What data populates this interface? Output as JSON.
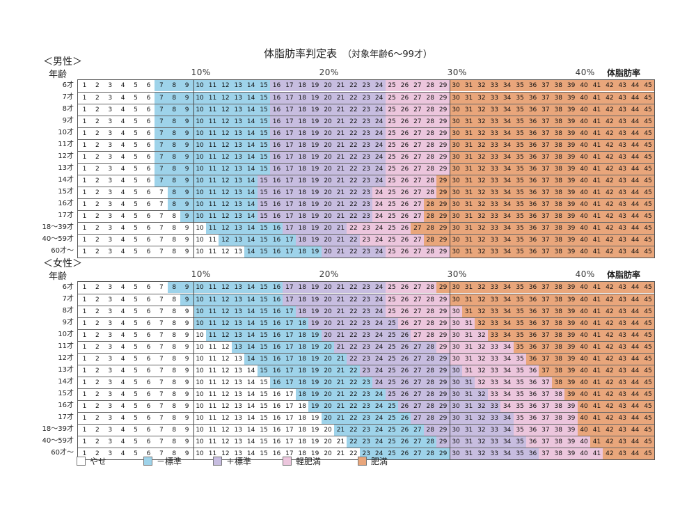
{
  "page": {
    "title": "体脂肪率判定表",
    "subtitle": "（対象年齢6〜99才）"
  },
  "header_labels": {
    "age": "年齢",
    "body_fat": "体脂肪率",
    "pct_marks": [
      "10%",
      "20%",
      "30%",
      "40%"
    ]
  },
  "legend": [
    {
      "key": "yase",
      "label": "やせ",
      "color": "#ffffff"
    },
    {
      "key": "minus",
      "label": "－標準",
      "color": "#9ed3ea"
    },
    {
      "key": "plus",
      "label": "＋標準",
      "color": "#c7bde0"
    },
    {
      "key": "kei",
      "label": "軽肥満",
      "color": "#ecc6dd"
    },
    {
      "key": "himan",
      "label": "肥満",
      "color": "#e9a67b"
    }
  ],
  "chart_data": [
    {
      "type": "table",
      "title": "＜男性＞",
      "columns": [
        1,
        2,
        3,
        4,
        5,
        6,
        7,
        8,
        9,
        10,
        11,
        12,
        13,
        14,
        15,
        16,
        17,
        18,
        19,
        20,
        21,
        22,
        23,
        24,
        25,
        26,
        27,
        28,
        29,
        30,
        31,
        32,
        33,
        34,
        35,
        36,
        37,
        38,
        39,
        40,
        41,
        42,
        43,
        44,
        45
      ],
      "rows": [
        {
          "age": "6才",
          "minus_start": 7,
          "plus_start": 16,
          "kei_start": 25,
          "himan_start": 30
        },
        {
          "age": "7才",
          "minus_start": 7,
          "plus_start": 16,
          "kei_start": 25,
          "himan_start": 30
        },
        {
          "age": "8才",
          "minus_start": 7,
          "plus_start": 16,
          "kei_start": 25,
          "himan_start": 30
        },
        {
          "age": "9才",
          "minus_start": 7,
          "plus_start": 16,
          "kei_start": 25,
          "himan_start": 30
        },
        {
          "age": "10才",
          "minus_start": 7,
          "plus_start": 16,
          "kei_start": 25,
          "himan_start": 30
        },
        {
          "age": "11才",
          "minus_start": 7,
          "plus_start": 16,
          "kei_start": 25,
          "himan_start": 30
        },
        {
          "age": "12才",
          "minus_start": 7,
          "plus_start": 16,
          "kei_start": 25,
          "himan_start": 30
        },
        {
          "age": "13才",
          "minus_start": 7,
          "plus_start": 16,
          "kei_start": 25,
          "himan_start": 30
        },
        {
          "age": "14才",
          "minus_start": 7,
          "plus_start": 15,
          "kei_start": 25,
          "himan_start": 29
        },
        {
          "age": "15才",
          "minus_start": 8,
          "plus_start": 15,
          "kei_start": 24,
          "himan_start": 29
        },
        {
          "age": "16才",
          "minus_start": 8,
          "plus_start": 15,
          "kei_start": 24,
          "himan_start": 28
        },
        {
          "age": "17才",
          "minus_start": 9,
          "plus_start": 15,
          "kei_start": 24,
          "himan_start": 28
        },
        {
          "age": "18〜39才",
          "minus_start": 11,
          "plus_start": 17,
          "kei_start": 22,
          "himan_start": 27
        },
        {
          "age": "40〜59才",
          "minus_start": 12,
          "plus_start": 18,
          "kei_start": 23,
          "himan_start": 28
        },
        {
          "age": "60才〜",
          "minus_start": 14,
          "plus_start": 20,
          "kei_start": 25,
          "himan_start": 30
        }
      ]
    },
    {
      "type": "table",
      "title": "＜女性＞",
      "columns": [
        1,
        2,
        3,
        4,
        5,
        6,
        7,
        8,
        9,
        10,
        11,
        12,
        13,
        14,
        15,
        16,
        17,
        18,
        19,
        20,
        21,
        22,
        23,
        24,
        25,
        26,
        27,
        28,
        29,
        30,
        31,
        32,
        33,
        34,
        35,
        36,
        37,
        38,
        39,
        40,
        41,
        42,
        43,
        44,
        45
      ],
      "rows": [
        {
          "age": "6才",
          "minus_start": 8,
          "plus_start": 17,
          "kei_start": 25,
          "himan_start": 29
        },
        {
          "age": "7才",
          "minus_start": 9,
          "plus_start": 17,
          "kei_start": 25,
          "himan_start": 30
        },
        {
          "age": "8才",
          "minus_start": 10,
          "plus_start": 18,
          "kei_start": 25,
          "himan_start": 31
        },
        {
          "age": "9才",
          "minus_start": 10,
          "plus_start": 19,
          "kei_start": 26,
          "himan_start": 32
        },
        {
          "age": "10才",
          "minus_start": 11,
          "plus_start": 20,
          "kei_start": 27,
          "himan_start": 33
        },
        {
          "age": "11才",
          "minus_start": 13,
          "plus_start": 21,
          "kei_start": 29,
          "himan_start": 35
        },
        {
          "age": "12才",
          "minus_start": 14,
          "plus_start": 22,
          "kei_start": 30,
          "himan_start": 36
        },
        {
          "age": "13才",
          "minus_start": 15,
          "plus_start": 23,
          "kei_start": 31,
          "himan_start": 37
        },
        {
          "age": "14才",
          "minus_start": 16,
          "plus_start": 24,
          "kei_start": 32,
          "himan_start": 38
        },
        {
          "age": "15才",
          "minus_start": 18,
          "plus_start": 25,
          "kei_start": 33,
          "himan_start": 39
        },
        {
          "age": "16才",
          "minus_start": 19,
          "plus_start": 26,
          "kei_start": 34,
          "himan_start": 40
        },
        {
          "age": "17才",
          "minus_start": 20,
          "plus_start": 27,
          "kei_start": 35,
          "himan_start": 40
        },
        {
          "age": "18〜39才",
          "minus_start": 21,
          "plus_start": 28,
          "kei_start": 35,
          "himan_start": 40
        },
        {
          "age": "40〜59才",
          "minus_start": 22,
          "plus_start": 29,
          "kei_start": 36,
          "himan_start": 41
        },
        {
          "age": "60才〜",
          "minus_start": 23,
          "plus_start": 30,
          "kei_start": 37,
          "himan_start": 42
        }
      ]
    }
  ]
}
